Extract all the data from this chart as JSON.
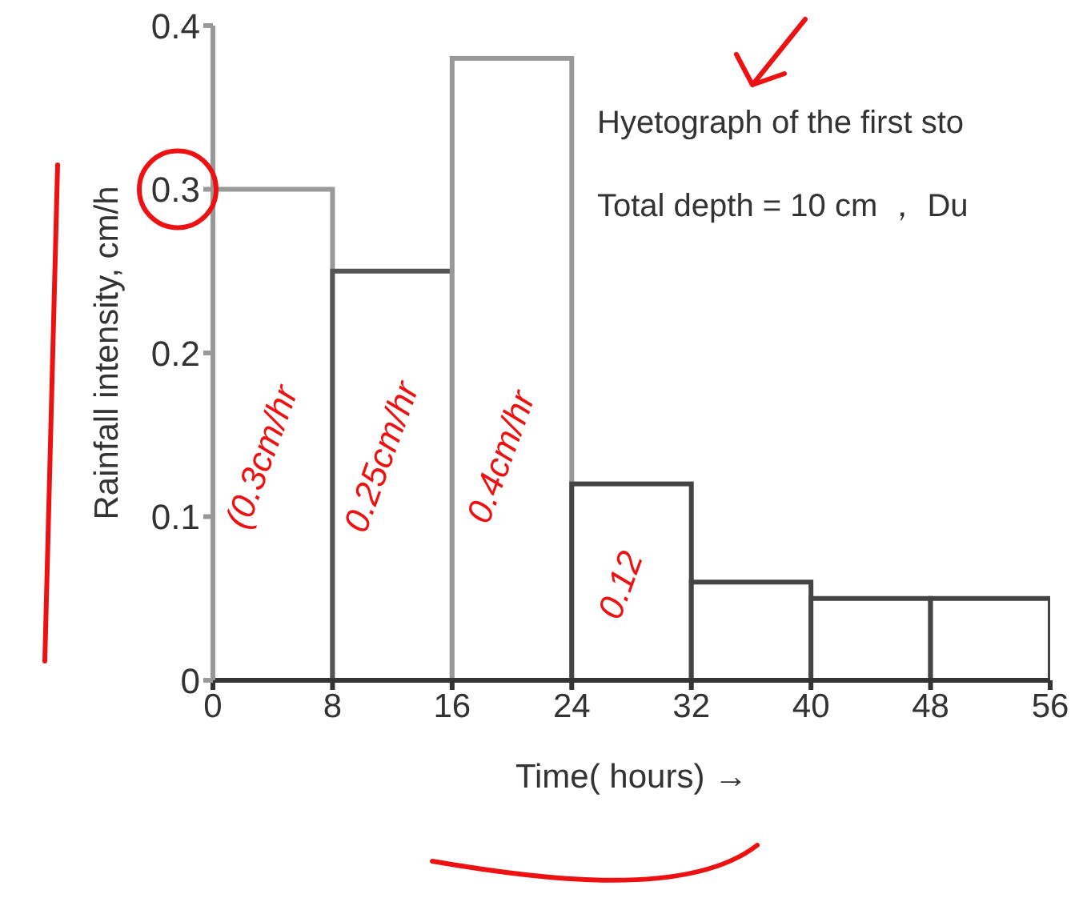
{
  "chart_data": {
    "type": "histogram",
    "title": "Hyetograph of the first sto",
    "subtitle": "Total depth = 10 cm ， Du",
    "xlabel": "Time( hours) →",
    "ylabel": "Rainfall intensity, cm/h",
    "bins": [
      0,
      8,
      16,
      24,
      32,
      40,
      48,
      56
    ],
    "values": [
      0.3,
      0.25,
      0.38,
      0.12,
      0.06,
      0.05,
      0.05
    ],
    "colors": [
      "#999999",
      "#555555",
      "#999999",
      "#444444",
      "#444444",
      "#444444",
      "#444444"
    ],
    "xlim": [
      0,
      56
    ],
    "xticks": [
      0,
      8,
      16,
      24,
      32,
      40,
      48,
      56
    ],
    "ylim": [
      0,
      0.4
    ],
    "yticks": [
      0,
      0.1,
      0.2,
      0.3,
      0.4
    ],
    "grid": false,
    "annotations": [
      "(0.3cm/hr",
      "0.25cm/hr",
      "0.4cm/hr",
      "0.12"
    ]
  }
}
